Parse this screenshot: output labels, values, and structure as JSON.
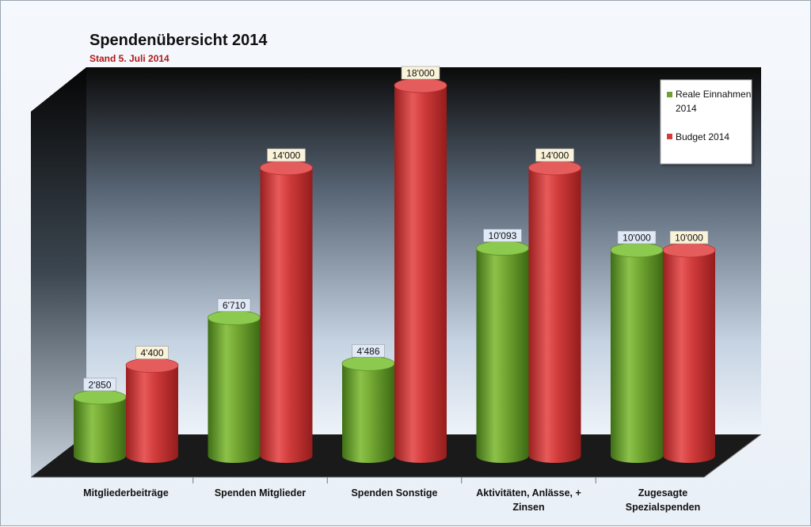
{
  "colors": {
    "real": "#6fa12e",
    "budget": "#d23c3c",
    "subtitle": "#b01818"
  },
  "chart_data": {
    "type": "bar",
    "title": "Spendenübersicht 2014",
    "subtitle": "Stand 5. Juli 2014",
    "categories": [
      [
        "Mitgliederbeiträge"
      ],
      [
        "Spenden Mitglieder"
      ],
      [
        "Spenden Sonstige"
      ],
      [
        "Aktivitäten, Anlässe, +",
        "Zinsen"
      ],
      [
        "Zugesagte",
        "Spezialspenden"
      ]
    ],
    "series": [
      {
        "name": "Reale Einnahmen 2014",
        "values": [
          2850,
          6710,
          4486,
          10093,
          10000
        ],
        "labels": [
          "2'850",
          "6'710",
          "4'486",
          "10'093",
          "10'000"
        ]
      },
      {
        "name": "Budget 2014",
        "values": [
          4400,
          14000,
          18000,
          14000,
          10000
        ],
        "labels": [
          "4'400",
          "14'000",
          "18'000",
          "14'000",
          "10'000"
        ]
      }
    ],
    "legend": {
      "placement": "top-right",
      "entries": [
        [
          "Reale Einnahmen",
          "2014"
        ],
        [
          "Budget 2014"
        ]
      ]
    },
    "ylim": [
      0,
      18000
    ],
    "grid": false
  }
}
